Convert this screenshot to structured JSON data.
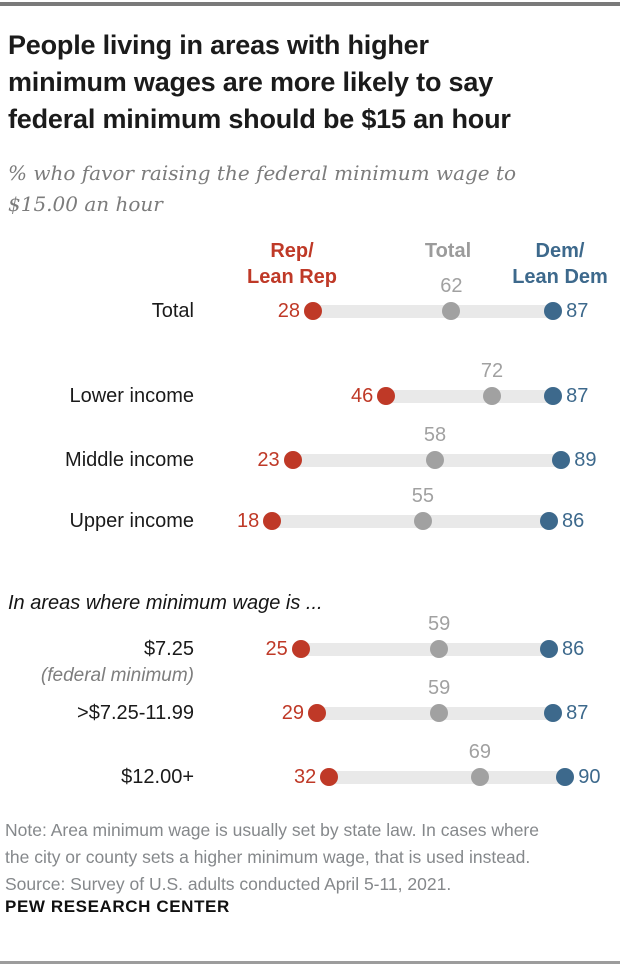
{
  "title_lines": [
    "People living in areas with higher",
    "minimum wages are more likely to say",
    "federal minimum should be $15 an hour"
  ],
  "subtitle_lines": [
    "% who favor raising the federal minimum wage to",
    "$15.00 an hour"
  ],
  "legend": {
    "rep_line1": "Rep/",
    "rep_line2": "Lean Rep",
    "total": "Total",
    "dem_line1": "Dem/",
    "dem_line2": "Lean Dem"
  },
  "section_header": "In areas where minimum wage is ...",
  "colors": {
    "rep": "#bf3927",
    "dem": "#3d698c",
    "total_dot": "#a1a1a1",
    "total_legend": "#9b9b9b",
    "track": "#e9e9e9"
  },
  "chart_data": {
    "type": "dumbbell",
    "title": "People living in areas with higher minimum wages are more likely to say federal minimum should be $15 an hour",
    "subtitle": "% who favor raising the federal minimum wage to $15.00 an hour",
    "axis_range": [
      0,
      100
    ],
    "series_names": [
      "Rep/Lean Rep",
      "Total",
      "Dem/Lean Dem"
    ],
    "rows": [
      {
        "label": "Total",
        "rep": 28,
        "total": 62,
        "dem": 87
      },
      {
        "label": "Lower income",
        "rep": 46,
        "total": 72,
        "dem": 87
      },
      {
        "label": "Middle income",
        "rep": 23,
        "total": 58,
        "dem": 89
      },
      {
        "label": "Upper income",
        "rep": 18,
        "total": 55,
        "dem": 86
      },
      {
        "label": "$7.25",
        "sublabel": "(federal minimum)",
        "rep": 25,
        "total": 59,
        "dem": 86
      },
      {
        "label": ">$7.25-11.99",
        "rep": 29,
        "total": 59,
        "dem": 87
      },
      {
        "label": "$12.00+",
        "rep": 32,
        "total": 69,
        "dem": 90
      }
    ]
  },
  "note_lines": [
    "Note: Area minimum wage is usually set by state law. In cases where",
    "the city or county sets a higher minimum wage, that is used instead.",
    "Source: Survey of U.S. adults conducted April 5-11, 2021."
  ],
  "footer": "PEW RESEARCH CENTER"
}
